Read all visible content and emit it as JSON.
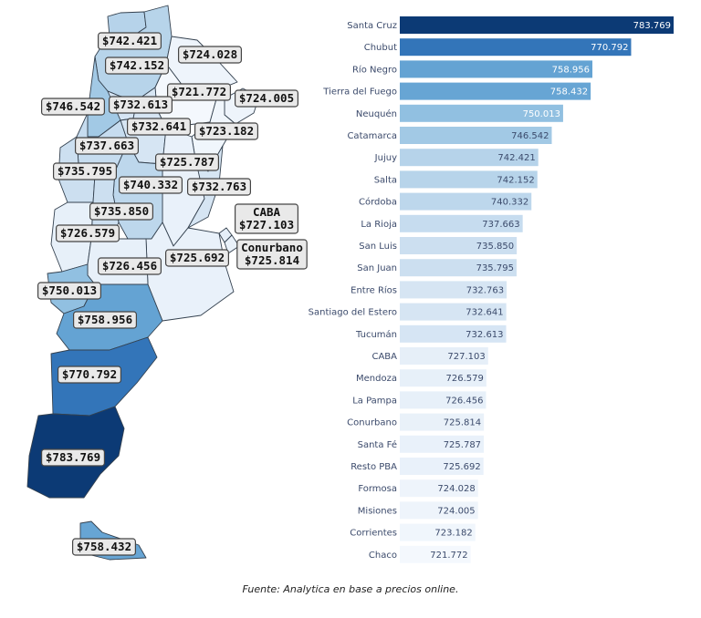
{
  "source_note": "Fuente: Analytica en base a precios online.",
  "colors": {
    "scale": [
      "#f4f8fd",
      "#d8e6f4",
      "#b6d3ea",
      "#84b9de",
      "#4f95cc",
      "#2a6ab2",
      "#0c3a75"
    ],
    "map_border": "#34414f",
    "label_box": "#e9e9e9"
  },
  "chart_data": [
    {
      "type": "bar",
      "orientation": "horizontal",
      "categories": [
        "Santa Cruz",
        "Chubut",
        "Río Negro",
        "Tierra del Fuego",
        "Neuquén",
        "Catamarca",
        "Jujuy",
        "Salta",
        "Córdoba",
        "La Rioja",
        "San Luis",
        "San Juan",
        "Entre Ríos",
        "Santiago del Estero",
        "Tucumán",
        "CABA",
        "Mendoza",
        "La Pampa",
        "Conurbano",
        "Santa Fé",
        "Resto PBA",
        "Formosa",
        "Misiones",
        "Corrientes",
        "Chaco"
      ],
      "values": [
        783.769,
        770.792,
        758.956,
        758.432,
        750.013,
        746.542,
        742.421,
        742.152,
        740.332,
        737.663,
        735.85,
        735.795,
        732.763,
        732.641,
        732.613,
        727.103,
        726.579,
        726.456,
        725.814,
        725.787,
        725.692,
        724.028,
        724.005,
        723.182,
        721.772
      ],
      "value_labels": [
        "783.769",
        "770.792",
        "758.956",
        "758.432",
        "750.013",
        "746.542",
        "742.421",
        "742.152",
        "740.332",
        "737.663",
        "735.850",
        "735.795",
        "732.763",
        "732.641",
        "732.613",
        "727.103",
        "726.579",
        "726.456",
        "725.814",
        "725.787",
        "725.692",
        "724.028",
        "724.005",
        "723.182",
        "721.772"
      ],
      "xlim": [
        0,
        783.769
      ]
    },
    {
      "type": "choropleth",
      "regions": [
        {
          "name": "Jujuy",
          "label": "$742.421",
          "value": 742.421
        },
        {
          "name": "Salta",
          "label": "$742.152",
          "value": 742.152
        },
        {
          "name": "Formosa",
          "label": "$724.028",
          "value": 724.028
        },
        {
          "name": "Chaco",
          "label": "$721.772",
          "value": 721.772
        },
        {
          "name": "Misiones",
          "label": "$724.005",
          "value": 724.005
        },
        {
          "name": "Catamarca",
          "label": "$746.542",
          "value": 746.542
        },
        {
          "name": "Tucumán",
          "label": "$732.613",
          "value": 732.613
        },
        {
          "name": "Santiago del Estero",
          "label": "$732.641",
          "value": 732.641
        },
        {
          "name": "Corrientes",
          "label": "$723.182",
          "value": 723.182
        },
        {
          "name": "La Rioja",
          "label": "$737.663",
          "value": 737.663
        },
        {
          "name": "Santa Fé",
          "label": "$725.787",
          "value": 725.787
        },
        {
          "name": "San Juan",
          "label": "$735.795",
          "value": 735.795
        },
        {
          "name": "Córdoba",
          "label": "$740.332",
          "value": 740.332
        },
        {
          "name": "Entre Ríos",
          "label": "$732.763",
          "value": 732.763
        },
        {
          "name": "San Luis",
          "label": "$735.850",
          "value": 735.85
        },
        {
          "name": "CABA",
          "label": "CABA\n$727.103",
          "value": 727.103
        },
        {
          "name": "Mendoza",
          "label": "$726.579",
          "value": 726.579
        },
        {
          "name": "Resto PBA",
          "label": "$725.692",
          "value": 725.692
        },
        {
          "name": "Conurbano",
          "label": "Conurbano\n$725.814",
          "value": 725.814
        },
        {
          "name": "La Pampa",
          "label": "$726.456",
          "value": 726.456
        },
        {
          "name": "Neuquén",
          "label": "$750.013",
          "value": 750.013
        },
        {
          "name": "Río Negro",
          "label": "$758.956",
          "value": 758.956
        },
        {
          "name": "Chubut",
          "label": "$770.792",
          "value": 770.792
        },
        {
          "name": "Santa Cruz",
          "label": "$783.769",
          "value": 783.769
        },
        {
          "name": "Tierra del Fuego",
          "label": "$758.432",
          "value": 758.432
        }
      ]
    }
  ]
}
